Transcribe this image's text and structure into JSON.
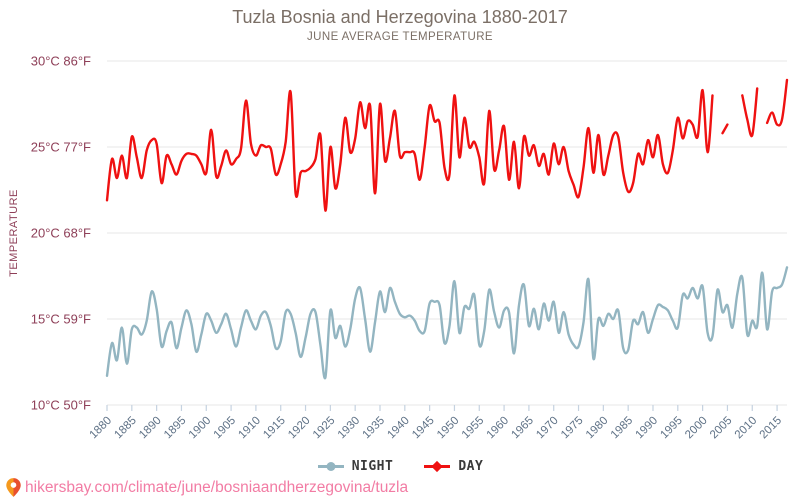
{
  "page": {
    "title": "Tuzla Bosnia and Herzegovina 1880-2017",
    "subtitle": "JUNE AVERAGE TEMPERATURE",
    "footer_url": "hikersbay.com/climate/june/bosniaandherzegovina/tuzla"
  },
  "legend": {
    "night_label": "NIGHT",
    "day_label": "DAY"
  },
  "colors": {
    "day": "#ef1111",
    "night": "#93b5c1",
    "title_text": "#7b6f66",
    "y_tick_text": "#8e3f58",
    "x_tick_text": "#5e7186",
    "grid": "#e7e7e7",
    "axis_tick": "#c5d2e0",
    "legend_text": "#3a3a3a",
    "url_text": "#f27ca4",
    "pin_orange": "#f5991d",
    "pin_red": "#e8502f"
  },
  "chart_data": {
    "type": "line",
    "title": "Tuzla Bosnia and Herzegovina 1880-2017",
    "subtitle": "JUNE AVERAGE TEMPERATURE",
    "ylabel": "TEMPERATURE",
    "xlabel": "",
    "grid": true,
    "legend_position": "bottom",
    "ylim": [
      10,
      30
    ],
    "y_ticks": [
      {
        "value": 30,
        "label": "30°C 86°F"
      },
      {
        "value": 25,
        "label": "25°C 77°F"
      },
      {
        "value": 20,
        "label": "20°C 68°F"
      },
      {
        "value": 15,
        "label": "15°C 59°F"
      },
      {
        "value": 10,
        "label": "10°C 50°F"
      }
    ],
    "x_tick_years": [
      1880,
      1885,
      1890,
      1895,
      1900,
      1905,
      1910,
      1915,
      1920,
      1925,
      1930,
      1935,
      1940,
      1945,
      1950,
      1955,
      1960,
      1965,
      1970,
      1975,
      1980,
      1985,
      1990,
      1995,
      2000,
      2005,
      2010,
      2015
    ],
    "years": [
      1880,
      1881,
      1882,
      1883,
      1884,
      1885,
      1886,
      1887,
      1888,
      1889,
      1890,
      1891,
      1892,
      1893,
      1894,
      1895,
      1896,
      1897,
      1898,
      1899,
      1900,
      1901,
      1902,
      1903,
      1904,
      1905,
      1906,
      1907,
      1908,
      1909,
      1910,
      1911,
      1912,
      1913,
      1914,
      1915,
      1916,
      1917,
      1918,
      1919,
      1920,
      1921,
      1922,
      1923,
      1924,
      1925,
      1926,
      1927,
      1928,
      1929,
      1930,
      1931,
      1932,
      1933,
      1934,
      1935,
      1936,
      1937,
      1938,
      1939,
      1940,
      1941,
      1942,
      1943,
      1944,
      1945,
      1946,
      1947,
      1948,
      1949,
      1950,
      1951,
      1952,
      1953,
      1954,
      1955,
      1956,
      1957,
      1958,
      1959,
      1960,
      1961,
      1962,
      1963,
      1964,
      1965,
      1966,
      1967,
      1968,
      1969,
      1970,
      1971,
      1972,
      1973,
      1974,
      1975,
      1976,
      1977,
      1978,
      1979,
      1980,
      1981,
      1982,
      1983,
      1984,
      1985,
      1986,
      1987,
      1988,
      1989,
      1990,
      1991,
      1992,
      1993,
      1994,
      1995,
      1996,
      1997,
      1998,
      1999,
      2000,
      2001,
      2002,
      2003,
      2004,
      2005,
      2006,
      2007,
      2008,
      2009,
      2010,
      2011,
      2012,
      2013,
      2014,
      2015,
      2016,
      2017
    ],
    "series": [
      {
        "name": "NIGHT",
        "color": "#93b5c1",
        "marker": "circle",
        "values": [
          11.7,
          13.6,
          12.6,
          14.5,
          12.4,
          14.4,
          14.5,
          14.1,
          14.9,
          16.6,
          15.6,
          13.4,
          14.3,
          14.8,
          13.3,
          14.5,
          15.5,
          14.7,
          13.1,
          14.1,
          15.3,
          14.9,
          14.2,
          14.7,
          15.3,
          14.4,
          13.4,
          14.5,
          15.5,
          14.9,
          14.4,
          15.2,
          15.4,
          14.6,
          13.3,
          13.7,
          15.4,
          15.3,
          14.2,
          12.8,
          13.9,
          15.3,
          15.4,
          13.5,
          11.6,
          15.5,
          13.9,
          14.6,
          13.4,
          14.4,
          16.2,
          16.8,
          15.0,
          13.1,
          14.8,
          16.6,
          15.4,
          16.8,
          16.0,
          15.3,
          15.1,
          15.2,
          14.9,
          14.3,
          14.3,
          15.9,
          16.0,
          15.8,
          13.6,
          14.6,
          17.2,
          14.2,
          15.7,
          15.6,
          16.4,
          13.5,
          14.3,
          16.7,
          15.4,
          14.5,
          15.5,
          15.4,
          13.0,
          15.8,
          17.0,
          14.6,
          15.6,
          14.4,
          15.9,
          14.9,
          16.0,
          14.2,
          15.4,
          14.1,
          13.5,
          13.4,
          14.8,
          17.3,
          12.7,
          15.0,
          14.6,
          15.3,
          15.0,
          15.5,
          13.3,
          13.2,
          14.9,
          14.7,
          15.4,
          14.2,
          15.0,
          15.8,
          15.7,
          15.5,
          14.9,
          14.5,
          16.4,
          16.2,
          16.8,
          16.2,
          16.9,
          14.2,
          14.0,
          16.7,
          15.4,
          15.8,
          14.5,
          16.5,
          17.4,
          14.1,
          14.9,
          14.6,
          17.7,
          14.4,
          16.6,
          16.8,
          17.0,
          18.0
        ]
      },
      {
        "name": "DAY",
        "color": "#ef1111",
        "marker": "diamond",
        "values": [
          21.9,
          24.3,
          23.2,
          24.5,
          23.2,
          25.6,
          24.4,
          23.2,
          24.8,
          25.4,
          25.2,
          22.9,
          24.5,
          24.0,
          23.4,
          24.2,
          24.6,
          24.6,
          24.5,
          24.0,
          23.5,
          26.0,
          23.3,
          23.9,
          24.8,
          24.0,
          24.3,
          24.9,
          27.7,
          25.2,
          24.5,
          25.1,
          25.0,
          24.9,
          23.4,
          24.0,
          25.3,
          28.2,
          22.3,
          23.5,
          23.6,
          23.8,
          24.3,
          25.7,
          21.3,
          25.0,
          22.6,
          24.0,
          26.7,
          24.7,
          25.5,
          27.6,
          26.1,
          27.4,
          22.3,
          27.5,
          24.2,
          25.5,
          27.1,
          24.5,
          24.7,
          24.7,
          24.6,
          23.1,
          25.0,
          27.4,
          26.5,
          26.4,
          23.8,
          23.4,
          28.0,
          24.4,
          26.7,
          25.0,
          25.3,
          24.4,
          22.9,
          27.1,
          23.7,
          24.8,
          26.2,
          23.1,
          25.3,
          22.6,
          25.6,
          24.5,
          25.1,
          23.9,
          24.6,
          23.4,
          25.2,
          24.0,
          25.0,
          23.6,
          22.8,
          22.1,
          23.8,
          26.1,
          23.5,
          25.7,
          23.4,
          24.5,
          25.7,
          25.6,
          23.5,
          22.4,
          22.9,
          24.6,
          24.0,
          25.4,
          24.4,
          25.7,
          24.0,
          23.5,
          24.8,
          26.7,
          25.5,
          26.5,
          26.3,
          25.6,
          28.3,
          24.7,
          28.0,
          null,
          25.8,
          26.3,
          null,
          null,
          28.0,
          26.6,
          25.7,
          28.4,
          null,
          26.4,
          27.0,
          26.3,
          26.6,
          28.9
        ]
      }
    ]
  }
}
